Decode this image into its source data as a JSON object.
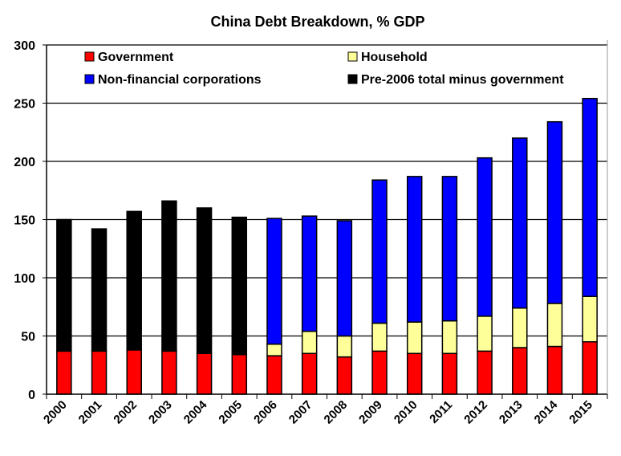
{
  "chart_data": {
    "type": "bar",
    "stacked": true,
    "title": "China Debt Breakdown, % GDP",
    "xlabel": "",
    "ylabel": "",
    "ylim": [
      0,
      300
    ],
    "yticks": [
      0,
      50,
      100,
      150,
      200,
      250,
      300
    ],
    "grid": true,
    "legend_placement": "top (inside plot, two columns)",
    "categories": [
      "2000",
      "2001",
      "2002",
      "2003",
      "2004",
      "2005",
      "2006",
      "2007",
      "2008",
      "2009",
      "2010",
      "2011",
      "2012",
      "2013",
      "2014",
      "2015"
    ],
    "series": [
      {
        "name": "Government",
        "color": "#ff0000",
        "values": [
          37,
          37,
          38,
          37,
          35,
          34,
          33,
          35,
          32,
          37,
          35,
          35,
          37,
          40,
          41,
          45
        ]
      },
      {
        "name": "Household",
        "color": "#ffff99",
        "values": [
          0,
          0,
          0,
          0,
          0,
          0,
          10,
          19,
          18,
          24,
          27,
          28,
          30,
          34,
          37,
          39
        ]
      },
      {
        "name": "Non-financial corporations",
        "color": "#0000ff",
        "values": [
          0,
          0,
          0,
          0,
          0,
          0,
          108,
          99,
          99,
          123,
          125,
          124,
          136,
          146,
          156,
          170
        ]
      },
      {
        "name": "Pre-2006 total minus government",
        "color": "#000000",
        "values": [
          113,
          105,
          119,
          129,
          125,
          118,
          0,
          0,
          0,
          0,
          0,
          0,
          0,
          0,
          0,
          0
        ]
      }
    ],
    "legend_order": [
      0,
      1,
      2,
      3
    ]
  }
}
